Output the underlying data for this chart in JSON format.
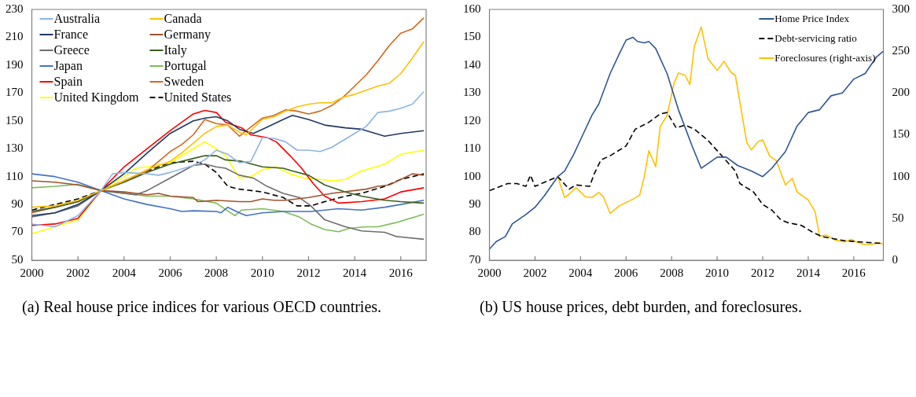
{
  "chart_data": [
    {
      "type": "line",
      "title": "(a) Real house price indices for various OECD countries.",
      "legend": "top left",
      "xlim": [
        2000,
        2017.1
      ],
      "xticks": [
        2000,
        2002,
        2004,
        2006,
        2008,
        2010,
        2012,
        2014,
        2016
      ],
      "ylim": [
        50,
        230
      ],
      "yticks": [
        50,
        70,
        90,
        110,
        130,
        150,
        170,
        190,
        210,
        230
      ],
      "series": [
        {
          "name": "Australia",
          "color": "#8eb4e3",
          "x": [
            2000,
            2001,
            2002,
            2003,
            2003.5,
            2004,
            2005,
            2005.5,
            2006,
            2007,
            2007.5,
            2008,
            2008.5,
            2009,
            2009.5,
            2010,
            2010.5,
            2011,
            2011.5,
            2012,
            2012.5,
            2013,
            2014,
            2014.5,
            2015,
            2015.5,
            2016,
            2016.5,
            2017
          ],
          "values": [
            76,
            74,
            82,
            100,
            112,
            113,
            112,
            111,
            113,
            118,
            122,
            129,
            126,
            120,
            121,
            138,
            137.5,
            135,
            129,
            129,
            128,
            131,
            141,
            146,
            156,
            157,
            159,
            162,
            171
          ]
        },
        {
          "name": "Canada",
          "color": "#ffc000",
          "x": [
            2000,
            2001,
            2002,
            2003,
            2004,
            2005,
            2006,
            2006.5,
            2007,
            2007.5,
            2008,
            2008.5,
            2009,
            2009.3,
            2010,
            2010.5,
            2011,
            2011.5,
            2012,
            2012.5,
            2013,
            2013.5,
            2014,
            2014.5,
            2015,
            2015.5,
            2016,
            2016.5,
            2017
          ],
          "values": [
            88,
            89,
            93,
            100,
            107,
            115,
            121,
            127,
            134,
            141,
            146,
            147,
            142,
            140,
            151,
            153,
            157,
            160,
            162,
            163,
            163,
            167,
            169,
            172,
            175,
            177,
            184,
            195,
            207
          ]
        },
        {
          "name": "France",
          "color": "#203864",
          "x": [
            2000,
            2001,
            2002,
            2003,
            2004,
            2005,
            2006,
            2007,
            2007.5,
            2008,
            2008.5,
            2009,
            2009.6,
            2010,
            2010.9,
            2011.3,
            2012,
            2012.7,
            2013.6,
            2014.3,
            2015.3,
            2016,
            2017
          ],
          "values": [
            82,
            84,
            90,
            100,
            112,
            127,
            141,
            150,
            152,
            153,
            150,
            144,
            141,
            144,
            151,
            154,
            151,
            147,
            145,
            144,
            139,
            141,
            143
          ]
        },
        {
          "name": "Germany",
          "color": "#a0522d",
          "x": [
            2000,
            2001,
            2002,
            2003,
            2004,
            2005,
            2005.5,
            2006,
            2007,
            2007.2,
            2008,
            2009,
            2009.5,
            2010,
            2010.5,
            2011,
            2011.5,
            2012,
            2013,
            2014,
            2014.5,
            2015,
            2015.5,
            2016,
            2016.5,
            2017
          ],
          "values": [
            107,
            106,
            104,
            100,
            99,
            97,
            98,
            96,
            95,
            92,
            93,
            92,
            92,
            94,
            93,
            93,
            94,
            95,
            98,
            100,
            101,
            103,
            104,
            108,
            112,
            111
          ]
        },
        {
          "name": "Greece",
          "color": "#6d6d6d",
          "x": [
            2000,
            2001,
            2002,
            2003,
            2004,
            2004.5,
            2005,
            2006,
            2007,
            2007.5,
            2008,
            2008.4,
            2009,
            2009.6,
            2010.2,
            2010.9,
            2011.6,
            2012.1,
            2012.7,
            2013.6,
            2014.3,
            2015.3,
            2015.8,
            2017
          ],
          "values": [
            81,
            84,
            89,
            100,
            98,
            97,
            100,
            109,
            118,
            119,
            117,
            116,
            111,
            109,
            103,
            98,
            95,
            89,
            79,
            74,
            71,
            70,
            67,
            65
          ]
        },
        {
          "name": "Italy",
          "color": "#3a5f1e",
          "x": [
            2000,
            2001,
            2002,
            2003,
            2004,
            2005,
            2006,
            2007,
            2007.5,
            2008,
            2008.4,
            2009.1,
            2010,
            2010.9,
            2011.3,
            2012,
            2012.7,
            2013.6,
            2014.3,
            2015.3,
            2016,
            2017
          ],
          "values": [
            85,
            88,
            92,
            100,
            106,
            113,
            119,
            123,
            125,
            125,
            122,
            121,
            117,
            116,
            114,
            111,
            104,
            99,
            96,
            93,
            92,
            91
          ]
        },
        {
          "name": "Japan",
          "color": "#4472c4",
          "x": [
            2000,
            2001,
            2002,
            2003,
            2004,
            2005,
            2006,
            2006.5,
            2007,
            2008,
            2008.2,
            2008.5,
            2009,
            2009.3,
            2010,
            2010.9,
            2012.1,
            2013.3,
            2014.3,
            2015.3,
            2016,
            2017
          ],
          "values": [
            112,
            110,
            106,
            100,
            94,
            90,
            87,
            85,
            85.5,
            85,
            84,
            88,
            84,
            82,
            84,
            85,
            85,
            87,
            86,
            88,
            90,
            93
          ]
        },
        {
          "name": "Portugal",
          "color": "#7ebc59",
          "x": [
            2000,
            2001,
            2002,
            2003,
            2004,
            2005,
            2006,
            2007,
            2008,
            2008.8,
            2009.1,
            2010,
            2010.9,
            2011.6,
            2012.1,
            2012.7,
            2013.3,
            2013.8,
            2014.5,
            2015,
            2015.8,
            2017
          ],
          "values": [
            102,
            103,
            104.5,
            100,
            98,
            96,
            96,
            94,
            91,
            82,
            86,
            87,
            85,
            81,
            76,
            72,
            70.5,
            73,
            74,
            74,
            77,
            83
          ]
        },
        {
          "name": "Spain",
          "color": "#ff0000",
          "x": [
            2000,
            2001,
            2002,
            2003,
            2004,
            2005,
            2006,
            2007,
            2007.5,
            2008,
            2008.4,
            2009.1,
            2009.5,
            2010.2,
            2010.6,
            2011.2,
            2011.7,
            2012.2,
            2012.7,
            2013.3,
            2014.3,
            2015.3,
            2016,
            2017
          ],
          "values": [
            75,
            76,
            80,
            100,
            117,
            130,
            143,
            155,
            157.5,
            156,
            149,
            145,
            140,
            138,
            135,
            125,
            116,
            105,
            96,
            91,
            92,
            94,
            99,
            102
          ]
        },
        {
          "name": "Sweden",
          "color": "#d2691e",
          "x": [
            2000,
            2001,
            2002,
            2003,
            2004,
            2005,
            2006,
            2006.5,
            2007,
            2007.5,
            2008,
            2008.5,
            2009,
            2009.3,
            2010,
            2010.5,
            2011,
            2011.5,
            2012,
            2012.5,
            2013,
            2013.5,
            2014,
            2014.5,
            2015,
            2015.5,
            2016,
            2016.5,
            2017
          ],
          "values": [
            84,
            88,
            92,
            100,
            107,
            114,
            128,
            133,
            140,
            151,
            148,
            147,
            139,
            143,
            152,
            154,
            158,
            157,
            155,
            157,
            161,
            167,
            175,
            183,
            193,
            204,
            213,
            216,
            224
          ]
        },
        {
          "name": "United Kingdom",
          "color": "#ffff00",
          "x": [
            2000,
            2001,
            2002,
            2003,
            2004,
            2004.5,
            2005,
            2006,
            2007,
            2007.5,
            2008,
            2008.4,
            2009,
            2009.5,
            2010,
            2010.6,
            2011.2,
            2011.8,
            2012.5,
            2013.1,
            2013.6,
            2014.3,
            2015.3,
            2016,
            2017
          ],
          "values": [
            69,
            74,
            79,
            100,
            110,
            116,
            117,
            120,
            130,
            135,
            130,
            125,
            109,
            110,
            115,
            117,
            112,
            109,
            108,
            107,
            108,
            114,
            119,
            126,
            129
          ]
        },
        {
          "name": "United States",
          "color": "#000000",
          "line_style": "dashed",
          "x": [
            2000,
            2001,
            2002,
            2003,
            2004,
            2005,
            2006,
            2007,
            2007.5,
            2008,
            2008.5,
            2009,
            2010,
            2010.9,
            2011.5,
            2012.1,
            2012.7,
            2013.6,
            2014.3,
            2015.3,
            2016,
            2017
          ],
          "values": [
            86,
            90,
            94,
            100,
            107,
            114,
            120,
            121,
            119,
            113,
            103,
            101,
            99,
            95,
            89,
            89,
            92,
            96,
            98,
            103,
            108,
            112
          ]
        }
      ]
    },
    {
      "type": "line",
      "title": "(b) US house prices, debt burden, and foreclosures.",
      "legend": "top right",
      "xlim": [
        2000,
        2017.3
      ],
      "xticks": [
        2000,
        2002,
        2004,
        2006,
        2008,
        2010,
        2012,
        2014,
        2016
      ],
      "ylim": [
        70,
        160
      ],
      "yticks": [
        70,
        80,
        90,
        100,
        110,
        120,
        130,
        140,
        150,
        160
      ],
      "y2lim": [
        0,
        300
      ],
      "y2ticks": [
        0,
        50,
        100,
        150,
        200,
        250,
        300
      ],
      "series": [
        {
          "name": "Home Price Index",
          "color": "#2f5597",
          "x": [
            2000,
            2000.3,
            2000.7,
            2001,
            2001.6,
            2002,
            2002.4,
            2003,
            2003.3,
            2003.7,
            2004.1,
            2004.5,
            2004.8,
            2005.3,
            2005.7,
            2006,
            2006.3,
            2006.5,
            2006.8,
            2007,
            2007.3,
            2007.8,
            2008.3,
            2008.9,
            2009.3,
            2010,
            2010.4,
            2010.9,
            2011.5,
            2012,
            2012.4,
            2013,
            2013.5,
            2014,
            2014.5,
            2015,
            2015.5,
            2016,
            2016.5,
            2017,
            2017.3
          ],
          "values": [
            74,
            76.7,
            78.5,
            83,
            86.4,
            89,
            93,
            100,
            102,
            108,
            115,
            122,
            126,
            137,
            144,
            149,
            150,
            148.5,
            148,
            148.5,
            146,
            137,
            124,
            111,
            103,
            107,
            107,
            104,
            102,
            100,
            103,
            109,
            118,
            123,
            124,
            129,
            130,
            135,
            137,
            143,
            145
          ]
        },
        {
          "name": "Debt-servicing ratio",
          "color": "#000000",
          "line_style": "dashed",
          "x": [
            2000,
            2000.8,
            2001.2,
            2001.6,
            2001.8,
            2002,
            2003,
            2003.5,
            2003.8,
            2004.4,
            2004.6,
            2004.9,
            2005.3,
            2006,
            2006.4,
            2007,
            2007.5,
            2007.8,
            2008.2,
            2008.6,
            2009,
            2009.6,
            2010.2,
            2010.8,
            2011,
            2011.6,
            2012,
            2012.4,
            2012.8,
            2013.1,
            2013.7,
            2014.2,
            2014.6,
            2015.6,
            2016.4,
            2017.3
          ],
          "values": [
            95,
            97.5,
            97.5,
            96.5,
            100.5,
            96.5,
            100,
            95.5,
            97,
            96.5,
            101,
            106,
            107.5,
            111,
            117,
            119.5,
            122.5,
            123,
            117.5,
            118.5,
            117,
            113,
            107.5,
            102,
            97.5,
            94.5,
            90,
            88,
            84.5,
            83.5,
            82.5,
            80,
            78.5,
            77,
            76.5,
            76
          ]
        },
        {
          "name": "Foreclosures (right-axis)",
          "color": "#ffc000",
          "axis": "y2",
          "x": [
            2003,
            2003.3,
            2003.5,
            2003.8,
            2004.2,
            2004.5,
            2004.8,
            2005,
            2005.3,
            2005.7,
            2006.3,
            2006.6,
            2006.8,
            2007,
            2007.3,
            2007.5,
            2007.8,
            2008.1,
            2008.3,
            2008.6,
            2008.8,
            2009,
            2009.3,
            2009.6,
            2010,
            2010.3,
            2010.6,
            2010.8,
            2011.3,
            2011.5,
            2011.8,
            2012,
            2012.3,
            2012.6,
            2013,
            2013.3,
            2013.5,
            2014,
            2014.3,
            2014.5,
            2014.8,
            2015.2,
            2015.6,
            2015.9,
            2016.1,
            2016.4,
            2016.8,
            2017.1,
            2017.3
          ],
          "values": [
            100,
            75,
            79,
            87,
            76,
            75,
            81,
            76,
            56,
            65,
            73,
            78,
            100,
            131,
            112,
            160,
            173,
            211,
            224,
            221,
            210,
            256,
            279,
            241,
            227,
            238,
            225,
            221,
            141,
            132,
            142,
            144,
            125,
            119,
            90,
            98,
            82,
            72,
            58,
            29,
            30,
            24,
            22,
            25,
            22,
            19,
            19,
            21,
            19
          ]
        }
      ]
    }
  ]
}
